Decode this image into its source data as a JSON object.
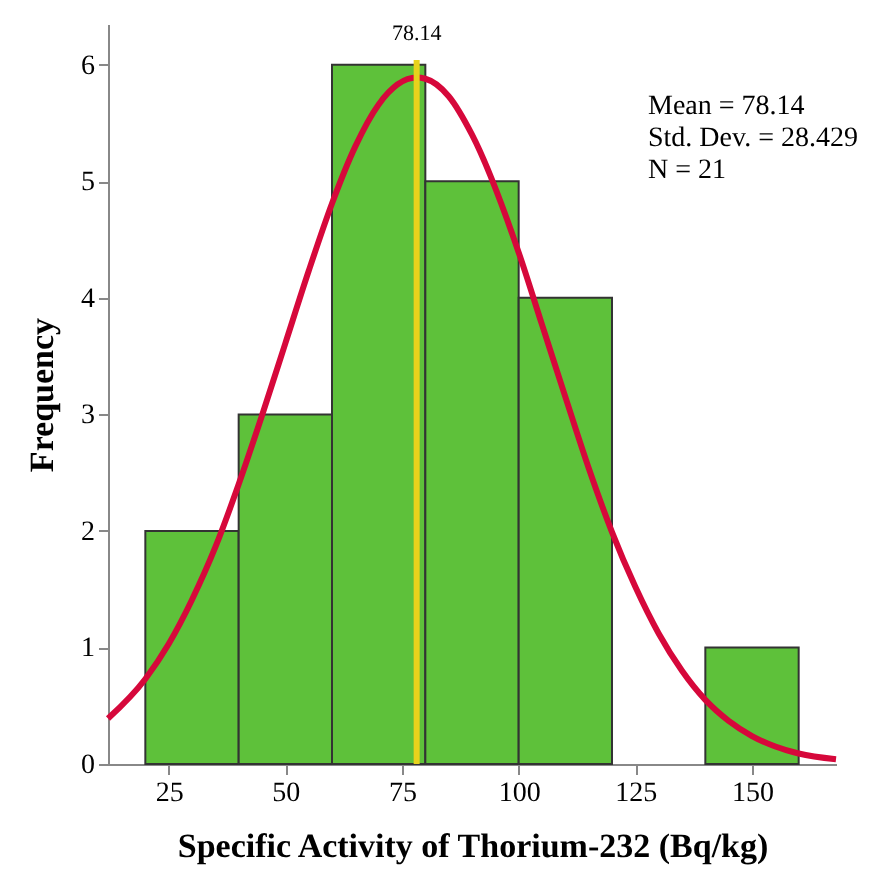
{
  "chart_data": {
    "type": "histogram",
    "xlabel": "Specific Activity of Thorium-232 (Bq/kg)",
    "ylabel": "Frequency",
    "bins": [
      20,
      40,
      60,
      80,
      100,
      120,
      140,
      160
    ],
    "values": [
      2,
      3,
      6,
      5,
      4,
      0,
      1
    ],
    "color": "#5ec13a",
    "series": [
      {
        "type": "line",
        "color": "#d6083b",
        "x": [
          12,
          20,
          25,
          30,
          35,
          40,
          45,
          50,
          55,
          60,
          65,
          70,
          78.14,
          80,
          85,
          90,
          100,
          105,
          110,
          115,
          120,
          125,
          130,
          135,
          140,
          145,
          150,
          155,
          160,
          168
        ],
        "values": [
          0.39,
          0.73,
          1.03,
          1.41,
          1.86,
          2.4,
          2.99,
          3.61,
          4.23,
          4.81,
          5.3,
          5.66,
          5.89,
          5.88,
          5.73,
          5.4,
          4.39,
          3.77,
          3.15,
          2.54,
          1.99,
          1.52,
          1.12,
          0.8,
          0.55,
          0.37,
          0.24,
          0.15,
          0.09,
          0.04
        ]
      }
    ],
    "xlim": [
      12,
      168
    ],
    "xticks": [
      25,
      50,
      75,
      100,
      125,
      150
    ],
    "ylim": [
      0,
      6.35
    ],
    "yticks": [
      0,
      1,
      2,
      3,
      4,
      5,
      6
    ],
    "ref_lines": [
      {
        "axis": "x",
        "value": 78.14,
        "label": "78.14",
        "color": "#e8d21c"
      }
    ],
    "annotations": [
      "Mean = 78.14",
      "Std. Dev. = 28.429",
      "N = 21"
    ],
    "grid": false
  }
}
